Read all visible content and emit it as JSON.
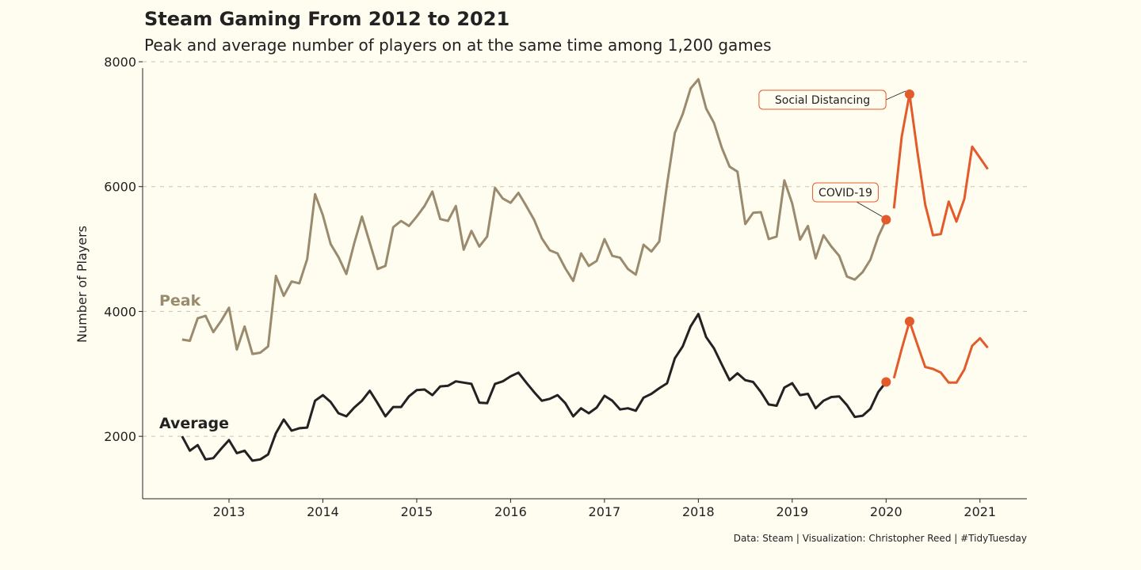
{
  "title": "Steam Gaming From 2012 to 2021",
  "subtitle": "Peak and average number of players on at the same time among 1,200 games",
  "caption": "Data: Steam | Visualization: Christopher Reed | #TidyTuesday",
  "colors": {
    "background": "#fffcf0",
    "peak": "#9a8a6e",
    "average": "#222222",
    "highlight": "#e35a2b",
    "grid": "#c9c4b4"
  },
  "chart_data": {
    "type": "line",
    "title": "Steam Gaming From 2012 to 2021",
    "subtitle": "Peak and average number of players on at the same time among 1,200 games",
    "xlabel": "",
    "ylabel": "Number of Players",
    "xlim": [
      2012.08,
      2021.5
    ],
    "ylim": [
      1000,
      8000
    ],
    "x_ticks": [
      2013,
      2014,
      2015,
      2016,
      2017,
      2018,
      2019,
      2020,
      2021
    ],
    "x_tick_labels": [
      "2013",
      "2014",
      "2015",
      "2016",
      "2017",
      "2018",
      "2019",
      "2020",
      "2021"
    ],
    "y_ticks": [
      2000,
      4000,
      6000,
      8000
    ],
    "y_tick_labels": [
      "2000",
      "4000",
      "6000",
      "8000"
    ],
    "grid": "horizontal dashed",
    "highlight_start": 2020.0,
    "x_start": 2012.5,
    "x_step": 0.0833333,
    "series": [
      {
        "name": "Peak",
        "label_position": "left",
        "values": [
          3550,
          3530,
          3890,
          3930,
          3670,
          3850,
          4060,
          3390,
          3760,
          3320,
          3340,
          3440,
          4570,
          4250,
          4480,
          4450,
          4840,
          5880,
          5540,
          5080,
          4870,
          4600,
          5090,
          5520,
          5100,
          4680,
          4730,
          5350,
          5450,
          5370,
          5520,
          5690,
          5920,
          5480,
          5450,
          5690,
          4990,
          5290,
          5040,
          5200,
          5980,
          5810,
          5740,
          5900,
          5690,
          5470,
          5170,
          4980,
          4930,
          4690,
          4490,
          4930,
          4730,
          4810,
          5160,
          4890,
          4860,
          4680,
          4590,
          5070,
          4960,
          5120,
          6040,
          6860,
          7160,
          7570,
          7720,
          7250,
          7020,
          6620,
          6320,
          6240,
          5400,
          5580,
          5590,
          5160,
          5200,
          6100,
          5730,
          5150,
          5370,
          4850,
          5220,
          5040,
          4890,
          4560,
          4510,
          4630,
          4830,
          5200,
          5470,
          5650,
          6800,
          7480,
          6560,
          5710,
          5220,
          5240,
          5760,
          5440,
          5800,
          6640,
          6460,
          6280
        ]
      },
      {
        "name": "Average",
        "label_position": "left",
        "values": [
          2000,
          1770,
          1860,
          1630,
          1650,
          1800,
          1940,
          1730,
          1770,
          1610,
          1630,
          1710,
          2050,
          2270,
          2090,
          2130,
          2140,
          2570,
          2660,
          2550,
          2370,
          2320,
          2460,
          2570,
          2730,
          2530,
          2320,
          2470,
          2470,
          2640,
          2740,
          2750,
          2660,
          2800,
          2810,
          2880,
          2860,
          2840,
          2540,
          2530,
          2840,
          2880,
          2960,
          3020,
          2860,
          2710,
          2570,
          2600,
          2660,
          2530,
          2320,
          2450,
          2370,
          2460,
          2650,
          2570,
          2430,
          2450,
          2410,
          2620,
          2680,
          2770,
          2850,
          3250,
          3440,
          3760,
          3960,
          3590,
          3410,
          3150,
          2900,
          3010,
          2900,
          2870,
          2710,
          2510,
          2490,
          2780,
          2850,
          2660,
          2680,
          2450,
          2570,
          2630,
          2640,
          2500,
          2310,
          2330,
          2440,
          2710,
          2870,
          2930,
          3400,
          3840,
          3470,
          3110,
          3080,
          3020,
          2860,
          2860,
          3070,
          3450,
          3570,
          3420
        ]
      }
    ],
    "annotations": [
      {
        "text": "Social Distancing",
        "x": 2020.25,
        "y": 7480,
        "series": "Peak"
      },
      {
        "text": "COVID-19",
        "x": 2020.0,
        "y": 5470,
        "series": "Peak"
      }
    ],
    "markers": [
      {
        "series": "Peak",
        "x": 2020.0,
        "y": 5470
      },
      {
        "series": "Peak",
        "x": 2020.25,
        "y": 7480
      },
      {
        "series": "Average",
        "x": 2020.0,
        "y": 2870
      },
      {
        "series": "Average",
        "x": 2020.25,
        "y": 3840
      }
    ]
  }
}
